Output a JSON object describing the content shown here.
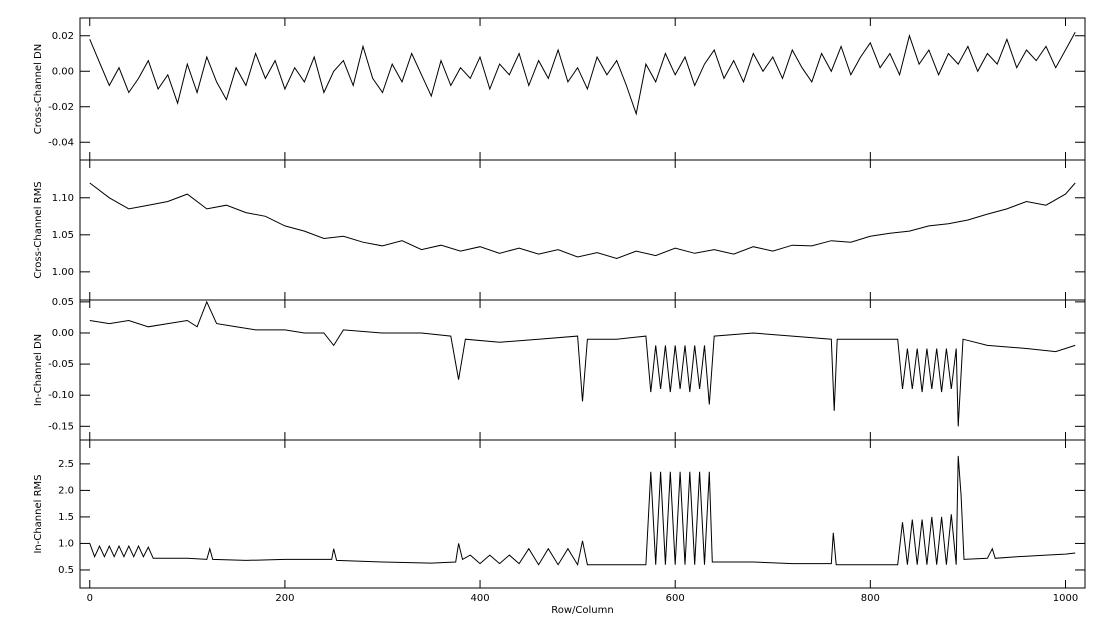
{
  "chart_data": [
    {
      "type": "line",
      "ylabel": "Cross-Channel DN",
      "color": "#000000",
      "xlim": [
        -10,
        1020
      ],
      "xticks": [
        0,
        200,
        400,
        600,
        800,
        1000
      ],
      "ylim": [
        -0.05,
        0.03
      ],
      "yticks": [
        {
          "value": -0.04,
          "label": "-0.04"
        },
        {
          "value": -0.02,
          "label": "-0.02"
        },
        {
          "value": 0,
          "label": "0.00"
        },
        {
          "value": 0.02,
          "label": "0.02"
        }
      ],
      "x": [
        0,
        10,
        20,
        30,
        40,
        50,
        60,
        70,
        80,
        90,
        100,
        110,
        120,
        130,
        140,
        150,
        160,
        170,
        180,
        190,
        200,
        210,
        220,
        230,
        240,
        250,
        260,
        270,
        280,
        290,
        300,
        310,
        320,
        330,
        340,
        350,
        360,
        370,
        380,
        390,
        400,
        410,
        420,
        430,
        440,
        450,
        460,
        470,
        480,
        490,
        500,
        510,
        520,
        530,
        540,
        550,
        560,
        570,
        580,
        590,
        600,
        610,
        620,
        630,
        640,
        650,
        660,
        670,
        680,
        690,
        700,
        710,
        720,
        730,
        740,
        750,
        760,
        770,
        780,
        790,
        800,
        810,
        820,
        830,
        840,
        850,
        860,
        870,
        880,
        890,
        900,
        910,
        920,
        930,
        940,
        950,
        960,
        970,
        980,
        990,
        1000,
        1010
      ],
      "values": [
        0.018,
        0.005,
        -0.008,
        0.002,
        -0.012,
        -0.004,
        0.006,
        -0.01,
        -0.002,
        -0.018,
        0.004,
        -0.012,
        0.008,
        -0.006,
        -0.016,
        0.002,
        -0.008,
        0.01,
        -0.004,
        0.006,
        -0.01,
        0.002,
        -0.006,
        0.008,
        -0.012,
        0,
        0.006,
        -0.008,
        0.014,
        -0.004,
        -0.012,
        0.004,
        -0.006,
        0.01,
        -0.002,
        -0.014,
        0.006,
        -0.008,
        0.002,
        -0.004,
        0.008,
        -0.01,
        0.004,
        -0.002,
        0.01,
        -0.008,
        0.006,
        -0.004,
        0.012,
        -0.006,
        0.002,
        -0.01,
        0.008,
        -0.002,
        0.006,
        -0.008,
        -0.024,
        0.004,
        -0.006,
        0.01,
        -0.002,
        0.008,
        -0.008,
        0.004,
        0.012,
        -0.004,
        0.006,
        -0.006,
        0.01,
        0,
        0.008,
        -0.004,
        0.012,
        0.002,
        -0.006,
        0.01,
        0,
        0.014,
        -0.002,
        0.008,
        0.016,
        0.002,
        0.01,
        -0.002,
        0.02,
        0.004,
        0.012,
        -0.002,
        0.01,
        0.004,
        0.014,
        0,
        0.01,
        0.004,
        0.018,
        0.002,
        0.012,
        0.006,
        0.014,
        0.002,
        0.012,
        0.022
      ]
    },
    {
      "type": "line",
      "ylabel": "Cross-Channel RMS",
      "color": "#000000",
      "xlim": [
        -10,
        1020
      ],
      "xticks": [
        0,
        200,
        400,
        600,
        800,
        1000
      ],
      "ylim": [
        0.962,
        1.151
      ],
      "yticks": [
        {
          "value": 1,
          "label": "1.00"
        },
        {
          "value": 1.05,
          "label": "1.05"
        },
        {
          "value": 1.1,
          "label": "1.10"
        }
      ],
      "x": [
        0,
        20,
        40,
        60,
        80,
        100,
        120,
        140,
        160,
        180,
        200,
        220,
        240,
        260,
        280,
        300,
        320,
        340,
        360,
        380,
        400,
        420,
        440,
        460,
        480,
        500,
        520,
        540,
        560,
        580,
        600,
        620,
        640,
        660,
        680,
        700,
        720,
        740,
        760,
        780,
        800,
        820,
        840,
        860,
        880,
        900,
        920,
        940,
        960,
        980,
        1000,
        1010
      ],
      "values": [
        1.12,
        1.1,
        1.085,
        1.09,
        1.095,
        1.105,
        1.085,
        1.09,
        1.08,
        1.075,
        1.062,
        1.055,
        1.045,
        1.048,
        1.04,
        1.035,
        1.042,
        1.03,
        1.036,
        1.028,
        1.034,
        1.025,
        1.032,
        1.024,
        1.03,
        1.02,
        1.026,
        1.018,
        1.028,
        1.022,
        1.032,
        1.025,
        1.03,
        1.024,
        1.034,
        1.028,
        1.036,
        1.035,
        1.042,
        1.04,
        1.048,
        1.052,
        1.055,
        1.062,
        1.065,
        1.07,
        1.078,
        1.085,
        1.095,
        1.09,
        1.105,
        1.12
      ]
    },
    {
      "type": "line",
      "ylabel": "In-Channel DN",
      "color": "#000000",
      "xlim": [
        -10,
        1020
      ],
      "xticks": [
        0,
        200,
        400,
        600,
        800,
        1000
      ],
      "ylim": [
        -0.172,
        0.053
      ],
      "yticks": [
        {
          "value": -0.15,
          "label": "-0.15"
        },
        {
          "value": -0.1,
          "label": "-0.10"
        },
        {
          "value": -0.05,
          "label": "-0.05"
        },
        {
          "value": 0,
          "label": "0.00"
        },
        {
          "value": 0.05,
          "label": "0.05"
        }
      ],
      "x": [
        0,
        20,
        40,
        60,
        80,
        100,
        110,
        120,
        130,
        150,
        170,
        200,
        220,
        240,
        250,
        260,
        300,
        340,
        370,
        378,
        385,
        420,
        460,
        500,
        505,
        510,
        540,
        570,
        575,
        580,
        585,
        590,
        595,
        600,
        605,
        610,
        615,
        620,
        625,
        630,
        635,
        640,
        680,
        720,
        760,
        763,
        766,
        800,
        828,
        833,
        838,
        843,
        848,
        853,
        858,
        863,
        868,
        873,
        878,
        883,
        888,
        890,
        895,
        920,
        960,
        990,
        1010
      ],
      "values": [
        0.02,
        0.015,
        0.02,
        0.01,
        0.015,
        0.02,
        0.01,
        0.05,
        0.015,
        0.01,
        0.005,
        0.005,
        0,
        0,
        -0.02,
        0.005,
        0,
        0,
        -0.005,
        -0.075,
        -0.01,
        -0.015,
        -0.01,
        -0.005,
        -0.11,
        -0.01,
        -0.01,
        -0.005,
        -0.095,
        -0.02,
        -0.09,
        -0.02,
        -0.095,
        -0.02,
        -0.09,
        -0.02,
        -0.095,
        -0.02,
        -0.09,
        -0.02,
        -0.115,
        -0.005,
        0,
        -0.005,
        -0.01,
        -0.125,
        -0.01,
        -0.01,
        -0.01,
        -0.09,
        -0.025,
        -0.09,
        -0.025,
        -0.095,
        -0.025,
        -0.09,
        -0.025,
        -0.095,
        -0.025,
        -0.09,
        -0.025,
        -0.15,
        -0.01,
        -0.02,
        -0.025,
        -0.03,
        -0.02
      ]
    },
    {
      "type": "line",
      "ylabel": "In-Channel RMS",
      "xlabel": "Row/Column",
      "color": "#000000",
      "xlim": [
        -10,
        1020
      ],
      "xticks": [
        0,
        200,
        400,
        600,
        800,
        1000
      ],
      "ylim": [
        0.16,
        2.95
      ],
      "yticks": [
        {
          "value": 0.5,
          "label": "0.5"
        },
        {
          "value": 1,
          "label": "1.0"
        },
        {
          "value": 1.5,
          "label": "1.5"
        },
        {
          "value": 2,
          "label": "2.0"
        },
        {
          "value": 2.5,
          "label": "2.5"
        }
      ],
      "x": [
        0,
        5,
        10,
        15,
        20,
        25,
        30,
        35,
        40,
        45,
        50,
        55,
        60,
        65,
        100,
        120,
        123,
        126,
        160,
        200,
        248,
        250,
        253,
        300,
        350,
        375,
        378,
        382,
        390,
        400,
        410,
        420,
        430,
        440,
        450,
        460,
        470,
        480,
        490,
        500,
        505,
        510,
        540,
        570,
        575,
        580,
        585,
        590,
        595,
        600,
        605,
        610,
        615,
        620,
        625,
        630,
        635,
        638,
        680,
        720,
        760,
        762,
        765,
        800,
        828,
        833,
        838,
        843,
        848,
        853,
        858,
        863,
        868,
        873,
        878,
        883,
        888,
        890,
        893,
        896,
        920,
        925,
        928,
        950,
        960,
        980,
        1000,
        1010
      ],
      "values": [
        1,
        0.75,
        0.95,
        0.75,
        0.95,
        0.75,
        0.95,
        0.75,
        0.95,
        0.75,
        0.95,
        0.75,
        0.93,
        0.72,
        0.72,
        0.7,
        0.9,
        0.7,
        0.68,
        0.7,
        0.7,
        0.9,
        0.68,
        0.65,
        0.63,
        0.65,
        1,
        0.7,
        0.78,
        0.62,
        0.78,
        0.62,
        0.78,
        0.62,
        0.9,
        0.6,
        0.9,
        0.6,
        0.9,
        0.6,
        1.05,
        0.6,
        0.6,
        0.6,
        2.35,
        0.6,
        2.35,
        0.6,
        2.35,
        0.6,
        2.35,
        0.6,
        2.35,
        0.6,
        2.35,
        0.6,
        2.35,
        0.65,
        0.65,
        0.62,
        0.62,
        1.2,
        0.6,
        0.6,
        0.6,
        1.4,
        0.6,
        1.45,
        0.6,
        1.45,
        0.6,
        1.5,
        0.6,
        1.5,
        0.6,
        1.55,
        0.6,
        2.65,
        1.9,
        0.7,
        0.72,
        0.9,
        0.72,
        0.75,
        0.76,
        0.78,
        0.8,
        0.82
      ]
    }
  ]
}
